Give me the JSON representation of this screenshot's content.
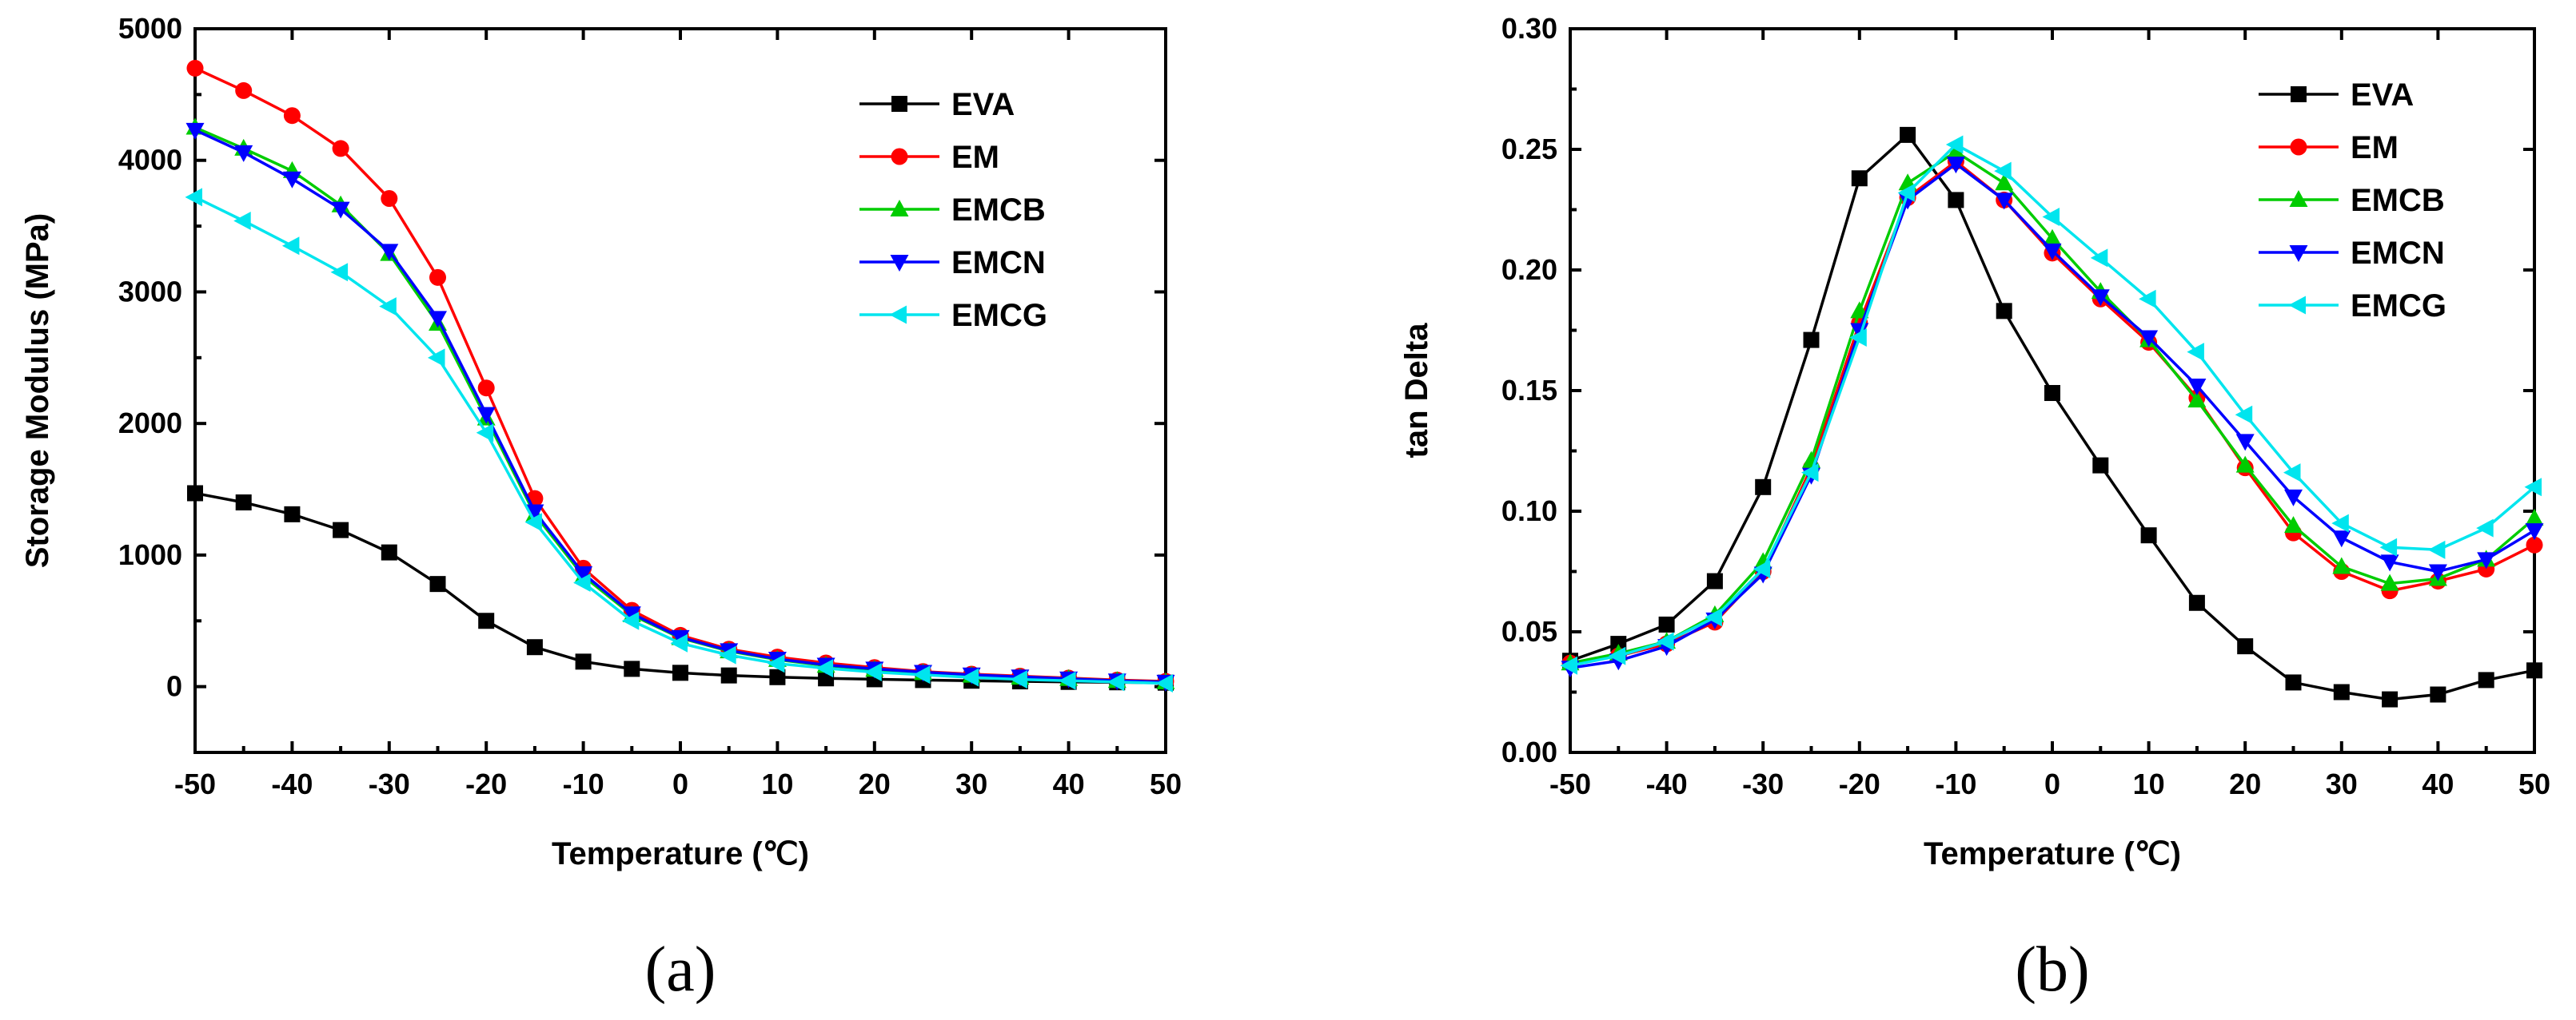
{
  "chart_data": [
    {
      "type": "line",
      "caption": "(a)",
      "xlabel": "Temperature (℃)",
      "ylabel": "Storage Modulus (MPa)",
      "xlim": [
        -50,
        50
      ],
      "ylim": [
        -500,
        5000
      ],
      "xticks": [
        -50,
        -40,
        -30,
        -20,
        -10,
        0,
        10,
        20,
        30,
        40,
        50
      ],
      "yticks": [
        0,
        1000,
        2000,
        3000,
        4000,
        5000
      ],
      "legend_position": "top-right",
      "x": [
        -50,
        -45,
        -40,
        -35,
        -30,
        -25,
        -20,
        -15,
        -10,
        -5,
        0,
        5,
        10,
        15,
        20,
        25,
        30,
        35,
        40,
        45,
        50
      ],
      "series": [
        {
          "name": "EVA",
          "color": "#000000",
          "marker": "square",
          "values": [
            1470,
            1400,
            1310,
            1190,
            1020,
            780,
            500,
            300,
            190,
            135,
            105,
            85,
            72,
            63,
            56,
            50,
            45,
            40,
            36,
            33,
            30
          ]
        },
        {
          "name": "EM",
          "color": "#ff0000",
          "marker": "circle",
          "values": [
            4700,
            4530,
            4340,
            4090,
            3710,
            3110,
            2270,
            1430,
            900,
            580,
            390,
            285,
            225,
            180,
            145,
            115,
            95,
            80,
            65,
            50,
            40
          ]
        },
        {
          "name": "EMCB",
          "color": "#00cc00",
          "marker": "triangle-up",
          "values": [
            4250,
            4090,
            3920,
            3660,
            3290,
            2760,
            2040,
            1310,
            840,
            545,
            370,
            270,
            205,
            160,
            130,
            105,
            85,
            70,
            60,
            45,
            35
          ]
        },
        {
          "name": "EMCN",
          "color": "#0000ff",
          "marker": "triangle-down",
          "values": [
            4230,
            4060,
            3860,
            3630,
            3310,
            2800,
            2070,
            1330,
            860,
            555,
            375,
            275,
            210,
            165,
            135,
            110,
            90,
            75,
            60,
            45,
            35
          ]
        },
        {
          "name": "EMCG",
          "color": "#00e5ee",
          "marker": "diamond-left",
          "values": [
            3720,
            3540,
            3350,
            3150,
            2890,
            2500,
            1930,
            1250,
            790,
            500,
            330,
            240,
            175,
            140,
            110,
            90,
            70,
            55,
            45,
            35,
            25
          ]
        }
      ]
    },
    {
      "type": "line",
      "caption": "(b)",
      "xlabel": "Temperature (℃)",
      "ylabel": "tan Delta",
      "xlim": [
        -50,
        50
      ],
      "ylim": [
        0,
        0.3
      ],
      "xticks": [
        -50,
        -40,
        -30,
        -20,
        -10,
        0,
        10,
        20,
        30,
        40,
        50
      ],
      "yticks": [
        "0.00",
        "0.05",
        "0.10",
        "0.15",
        "0.20",
        "0.25",
        "0.30"
      ],
      "legend_position": "top-right",
      "x": [
        -50,
        -45,
        -40,
        -35,
        -30,
        -25,
        -20,
        -15,
        -10,
        -5,
        0,
        5,
        10,
        15,
        20,
        25,
        30,
        35,
        40,
        45,
        50
      ],
      "series": [
        {
          "name": "EVA",
          "color": "#000000",
          "marker": "square",
          "values": [
            0.038,
            0.045,
            0.053,
            0.071,
            0.11,
            0.171,
            0.238,
            0.256,
            0.229,
            0.183,
            0.149,
            0.119,
            0.09,
            0.062,
            0.044,
            0.029,
            0.025,
            0.022,
            0.024,
            0.03,
            0.034
          ]
        },
        {
          "name": "EM",
          "color": "#ff0000",
          "marker": "circle",
          "values": [
            0.037,
            0.04,
            0.045,
            0.054,
            0.075,
            0.118,
            0.178,
            0.23,
            0.245,
            0.229,
            0.207,
            0.188,
            0.17,
            0.147,
            0.118,
            0.091,
            0.075,
            0.067,
            0.071,
            0.076,
            0.086
          ]
        },
        {
          "name": "EMCB",
          "color": "#00cc00",
          "marker": "triangle-up",
          "values": [
            0.037,
            0.041,
            0.046,
            0.057,
            0.079,
            0.121,
            0.183,
            0.236,
            0.249,
            0.236,
            0.213,
            0.191,
            0.171,
            0.146,
            0.119,
            0.094,
            0.077,
            0.07,
            0.072,
            0.08,
            0.097
          ]
        },
        {
          "name": "EMCN",
          "color": "#0000ff",
          "marker": "triangle-down",
          "values": [
            0.035,
            0.038,
            0.044,
            0.055,
            0.074,
            0.115,
            0.175,
            0.229,
            0.244,
            0.229,
            0.208,
            0.189,
            0.172,
            0.152,
            0.129,
            0.106,
            0.089,
            0.079,
            0.075,
            0.08,
            0.092
          ]
        },
        {
          "name": "EMCG",
          "color": "#00e5ee",
          "marker": "diamond-left",
          "values": [
            0.036,
            0.04,
            0.046,
            0.056,
            0.076,
            0.116,
            0.172,
            0.232,
            0.252,
            0.241,
            0.222,
            0.205,
            0.188,
            0.166,
            0.14,
            0.116,
            0.095,
            0.085,
            0.084,
            0.093,
            0.11
          ]
        }
      ]
    }
  ]
}
